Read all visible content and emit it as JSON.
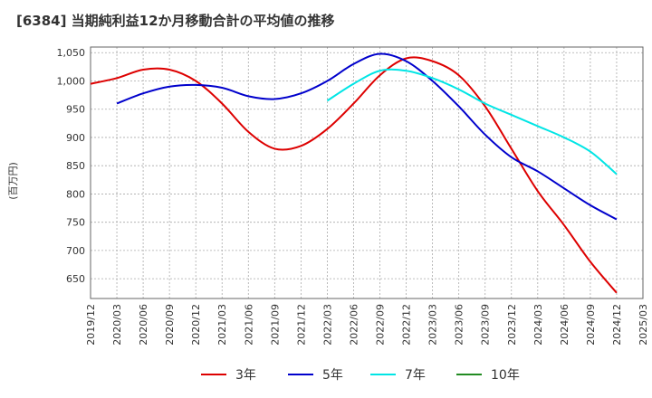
{
  "chart_data": {
    "type": "line",
    "title": "[6384]  当期純利益12か月移動合計の平均値の推移",
    "ylabel": "(百万円)",
    "xlabel": "",
    "ylim": [
      615,
      1060
    ],
    "yticks": [
      650,
      700,
      750,
      800,
      850,
      900,
      950,
      1000,
      1050
    ],
    "ytick_labels": [
      "650",
      "700",
      "750",
      "800",
      "850",
      "900",
      "950",
      "1,000",
      "1,050"
    ],
    "x_ticks": [
      "2019/12",
      "2020/03",
      "2020/06",
      "2020/09",
      "2020/12",
      "2021/03",
      "2021/06",
      "2021/09",
      "2021/12",
      "2022/03",
      "2022/06",
      "2022/09",
      "2022/12",
      "2023/03",
      "2023/06",
      "2023/09",
      "2023/12",
      "2024/03",
      "2024/06",
      "2024/09",
      "2024/12",
      "2025/03"
    ],
    "grid": true,
    "legend_position": "bottom",
    "series": [
      {
        "name": "3年",
        "color": "#dd0000",
        "values": [
          [
            "2019/12",
            995
          ],
          [
            "2020/03",
            1005
          ],
          [
            "2020/06",
            1020
          ],
          [
            "2020/09",
            1020
          ],
          [
            "2020/12",
            1000
          ],
          [
            "2021/03",
            960
          ],
          [
            "2021/06",
            910
          ],
          [
            "2021/09",
            880
          ],
          [
            "2021/12",
            885
          ],
          [
            "2022/03",
            915
          ],
          [
            "2022/06",
            960
          ],
          [
            "2022/09",
            1010
          ],
          [
            "2022/12",
            1040
          ],
          [
            "2023/03",
            1035
          ],
          [
            "2023/06",
            1010
          ],
          [
            "2023/09",
            955
          ],
          [
            "2023/12",
            880
          ],
          [
            "2024/03",
            805
          ],
          [
            "2024/06",
            745
          ],
          [
            "2024/09",
            680
          ],
          [
            "2024/12",
            625
          ]
        ]
      },
      {
        "name": "5年",
        "color": "#0000cc",
        "values": [
          [
            "2020/03",
            960
          ],
          [
            "2020/06",
            978
          ],
          [
            "2020/09",
            990
          ],
          [
            "2020/12",
            993
          ],
          [
            "2021/03",
            988
          ],
          [
            "2021/06",
            973
          ],
          [
            "2021/09",
            968
          ],
          [
            "2021/12",
            978
          ],
          [
            "2022/03",
            1000
          ],
          [
            "2022/06",
            1030
          ],
          [
            "2022/09",
            1048
          ],
          [
            "2022/12",
            1035
          ],
          [
            "2023/03",
            1000
          ],
          [
            "2023/06",
            955
          ],
          [
            "2023/09",
            905
          ],
          [
            "2023/12",
            865
          ],
          [
            "2024/03",
            840
          ],
          [
            "2024/06",
            810
          ],
          [
            "2024/09",
            780
          ],
          [
            "2024/12",
            755
          ]
        ]
      },
      {
        "name": "7年",
        "color": "#00e5e5",
        "values": [
          [
            "2022/03",
            965
          ],
          [
            "2022/06",
            995
          ],
          [
            "2022/09",
            1018
          ],
          [
            "2022/12",
            1018
          ],
          [
            "2023/03",
            1005
          ],
          [
            "2023/06",
            985
          ],
          [
            "2023/09",
            960
          ],
          [
            "2023/12",
            940
          ],
          [
            "2024/03",
            920
          ],
          [
            "2024/06",
            900
          ],
          [
            "2024/09",
            875
          ],
          [
            "2024/12",
            835
          ]
        ]
      },
      {
        "name": "10年",
        "color": "#228B22",
        "values": []
      }
    ]
  }
}
